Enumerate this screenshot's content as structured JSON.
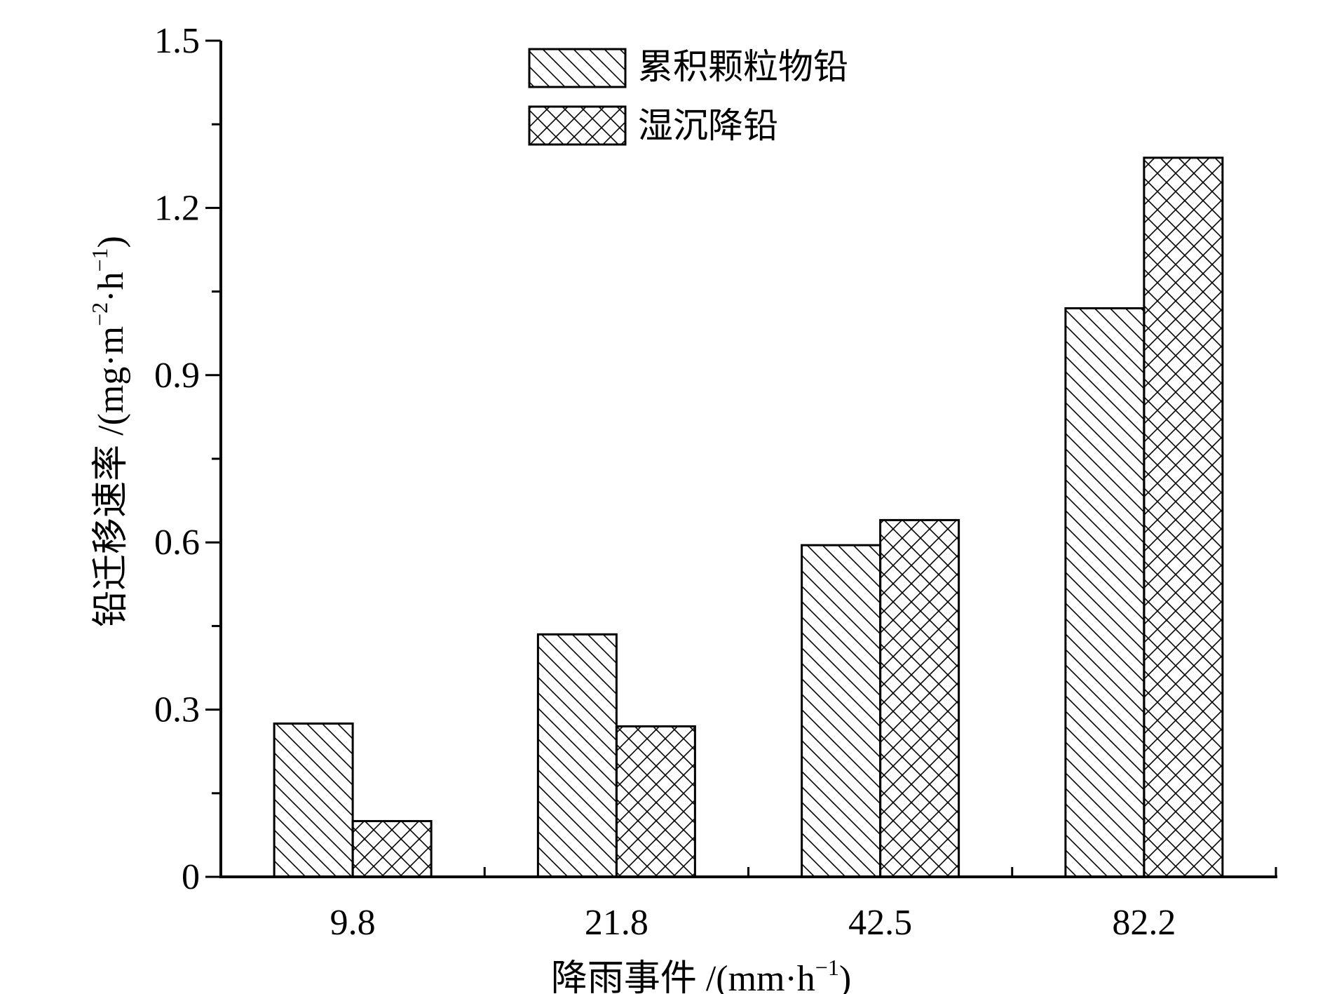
{
  "chart_data": {
    "type": "bar",
    "categories": [
      "9.8",
      "21.8",
      "42.5",
      "82.2"
    ],
    "series": [
      {
        "name": "累积颗粒物铅",
        "pattern": "diagonal",
        "values": [
          0.275,
          0.435,
          0.595,
          1.02
        ]
      },
      {
        "name": "湿沉降铅",
        "pattern": "crosshatch",
        "values": [
          0.1,
          0.27,
          0.64,
          1.29
        ]
      }
    ],
    "xlabel": "降雨事件 /(mm·h",
    "xlabel_sup": "−1",
    "xlabel_tail": ")",
    "ylabel": "铅迁移速率 /(mg·m",
    "ylabel_sup1": "−2",
    "ylabel_mid": "·h",
    "ylabel_sup2": "−1",
    "ylabel_tail": ")",
    "ylim": [
      0,
      1.5
    ],
    "yticks": [
      "0",
      "0.3",
      "0.6",
      "0.9",
      "1.2",
      "1.5"
    ],
    "grid": false,
    "legend": "top-center",
    "colors": {
      "stroke": "#000000",
      "fill": "#ffffff"
    }
  }
}
